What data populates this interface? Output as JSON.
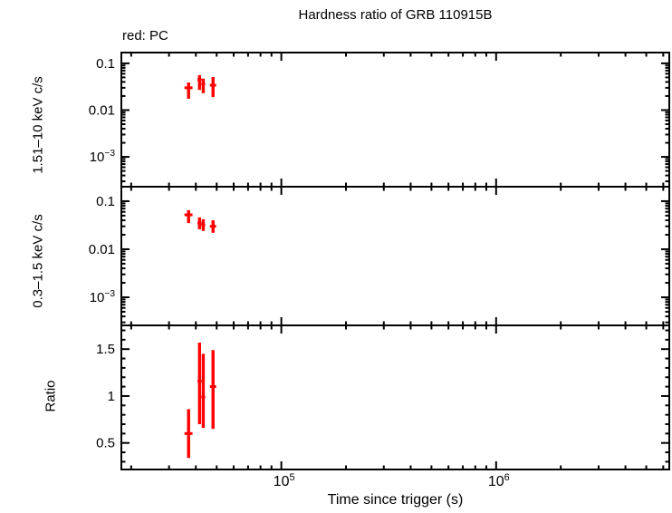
{
  "chart_data": {
    "type": "scatter",
    "title": "Hardness ratio of GRB 110915B",
    "annotation": "red: PC",
    "annotation_meaning": "red points = PC mode data",
    "xlabel": "Time since trigger (s)",
    "xscale": "log",
    "xlim": [
      18000,
      6400000
    ],
    "x_major_ticks": [
      100000,
      1000000
    ],
    "x_major_tick_labels": [
      "10^5",
      "10^6"
    ],
    "x_minor_ticks": [
      20000,
      30000,
      40000,
      50000,
      60000,
      70000,
      80000,
      90000,
      200000,
      300000,
      400000,
      500000,
      600000,
      700000,
      800000,
      900000,
      2000000,
      3000000,
      4000000,
      5000000,
      6000000
    ],
    "grid": false,
    "series_color": "#ff0000",
    "frame_color": "#000000",
    "background_color": "#ffffff",
    "legend_position": "top-left-above-frame",
    "panels": [
      {
        "name": "hard-band-rate",
        "ylabel": "1.51–10 keV c/s",
        "yscale": "log",
        "ylim": [
          0.00023,
          0.17
        ],
        "y_major_ticks": [
          0.1,
          0.01,
          0.001
        ],
        "y_major_tick_labels": [
          "0.1",
          "0.01",
          "10^-3"
        ],
        "y_minor_ticks": [
          0.0003,
          0.0004,
          0.0005,
          0.0006,
          0.0007,
          0.0008,
          0.0009,
          0.002,
          0.003,
          0.004,
          0.005,
          0.006,
          0.007,
          0.008,
          0.009,
          0.02,
          0.03,
          0.04,
          0.05,
          0.06,
          0.07,
          0.08,
          0.09
        ],
        "points": [
          {
            "x": 37000,
            "xerr": 1600,
            "y": 0.03,
            "y_lo": 0.0175,
            "y_hi": 0.039
          },
          {
            "x": 41600,
            "xerr": 900,
            "y": 0.045,
            "y_lo": 0.027,
            "y_hi": 0.056
          },
          {
            "x": 43300,
            "xerr": 900,
            "y": 0.036,
            "y_lo": 0.023,
            "y_hi": 0.047
          },
          {
            "x": 48100,
            "xerr": 1600,
            "y": 0.034,
            "y_lo": 0.019,
            "y_hi": 0.051
          }
        ]
      },
      {
        "name": "soft-band-rate",
        "ylabel": "0.3–1.5 keV c/s",
        "yscale": "log",
        "ylim": [
          0.00026,
          0.2
        ],
        "y_major_ticks": [
          0.1,
          0.01,
          0.001
        ],
        "y_major_tick_labels": [
          "0.1",
          "0.01",
          "10^-3"
        ],
        "y_minor_ticks": [
          0.0003,
          0.0004,
          0.0005,
          0.0006,
          0.0007,
          0.0008,
          0.0009,
          0.002,
          0.003,
          0.004,
          0.005,
          0.006,
          0.007,
          0.008,
          0.009,
          0.02,
          0.03,
          0.04,
          0.05,
          0.06,
          0.07,
          0.08,
          0.09
        ],
        "points": [
          {
            "x": 37000,
            "xerr": 1600,
            "y": 0.052,
            "y_lo": 0.035,
            "y_hi": 0.065
          },
          {
            "x": 41600,
            "xerr": 900,
            "y": 0.035,
            "y_lo": 0.026,
            "y_hi": 0.046
          },
          {
            "x": 43300,
            "xerr": 900,
            "y": 0.032,
            "y_lo": 0.024,
            "y_hi": 0.042
          },
          {
            "x": 48100,
            "xerr": 1600,
            "y": 0.03,
            "y_lo": 0.022,
            "y_hi": 0.04
          }
        ]
      },
      {
        "name": "hardness-ratio",
        "ylabel": "Ratio",
        "yscale": "linear",
        "ylim": [
          0.217,
          1.753
        ],
        "y_major_ticks": [
          1.5,
          1.0,
          0.5
        ],
        "y_major_tick_labels": [
          "1.5",
          "1",
          "0.5"
        ],
        "y_minor_ticks": [
          0.3,
          0.4,
          0.6,
          0.7,
          0.8,
          0.9,
          1.1,
          1.2,
          1.3,
          1.4,
          1.6,
          1.7
        ],
        "points": [
          {
            "x": 37000,
            "xerr": 1600,
            "y": 0.6,
            "y_lo": 0.34,
            "y_hi": 0.86
          },
          {
            "x": 41600,
            "xerr": 900,
            "y": 1.16,
            "y_lo": 0.7,
            "y_hi": 1.57
          },
          {
            "x": 43300,
            "xerr": 900,
            "y": 0.99,
            "y_lo": 0.66,
            "y_hi": 1.45
          },
          {
            "x": 48100,
            "xerr": 1600,
            "y": 1.1,
            "y_lo": 0.65,
            "y_hi": 1.49
          }
        ]
      }
    ]
  }
}
